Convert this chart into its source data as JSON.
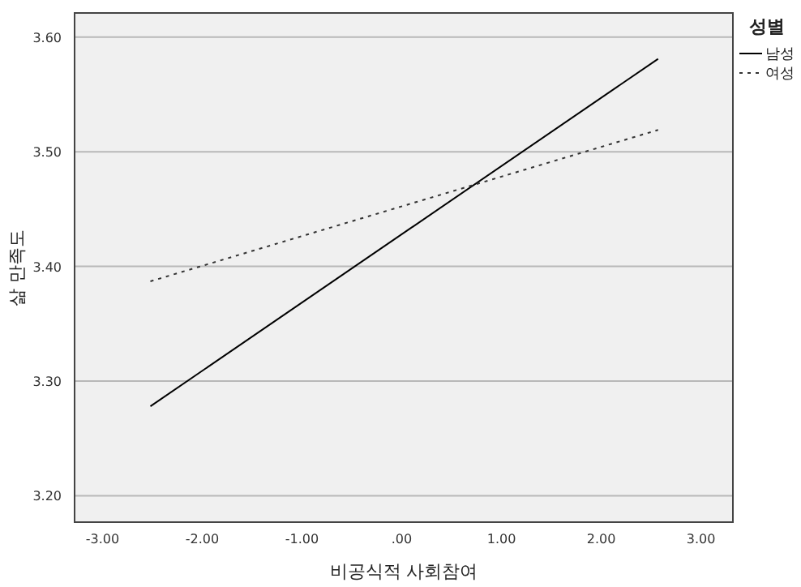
{
  "chart_data": {
    "type": "line",
    "xlabel": "비공식적 사회참여",
    "ylabel": "삶 만족도",
    "legend_title": "성별",
    "series": [
      {
        "name": "남성",
        "color": "#000000",
        "line_style": "solid",
        "values": [
          3.278,
          3.581
        ]
      },
      {
        "name": "여성",
        "color": "#333333",
        "line_style": "dotted",
        "values": [
          3.387,
          3.519
        ]
      }
    ],
    "x": [
      -2.52,
      2.57
    ],
    "xlim": [
      -3.28,
      3.32
    ],
    "ylim": [
      3.177,
      3.621
    ],
    "xticks": [
      {
        "value": -3,
        "label": "-3.00"
      },
      {
        "value": -2,
        "label": "-2.00"
      },
      {
        "value": -1,
        "label": "-1.00"
      },
      {
        "value": 0,
        "label": ".00"
      },
      {
        "value": 1,
        "label": "1.00"
      },
      {
        "value": 2,
        "label": "2.00"
      },
      {
        "value": 3,
        "label": "3.00"
      }
    ],
    "yticks": [
      {
        "value": 3.2,
        "label": "3.20"
      },
      {
        "value": 3.3,
        "label": "3.30"
      },
      {
        "value": 3.4,
        "label": "3.40"
      },
      {
        "value": 3.5,
        "label": "3.50"
      },
      {
        "value": 3.6,
        "label": "3.60"
      }
    ],
    "grid": "y",
    "legend": "right",
    "marker": "none"
  }
}
